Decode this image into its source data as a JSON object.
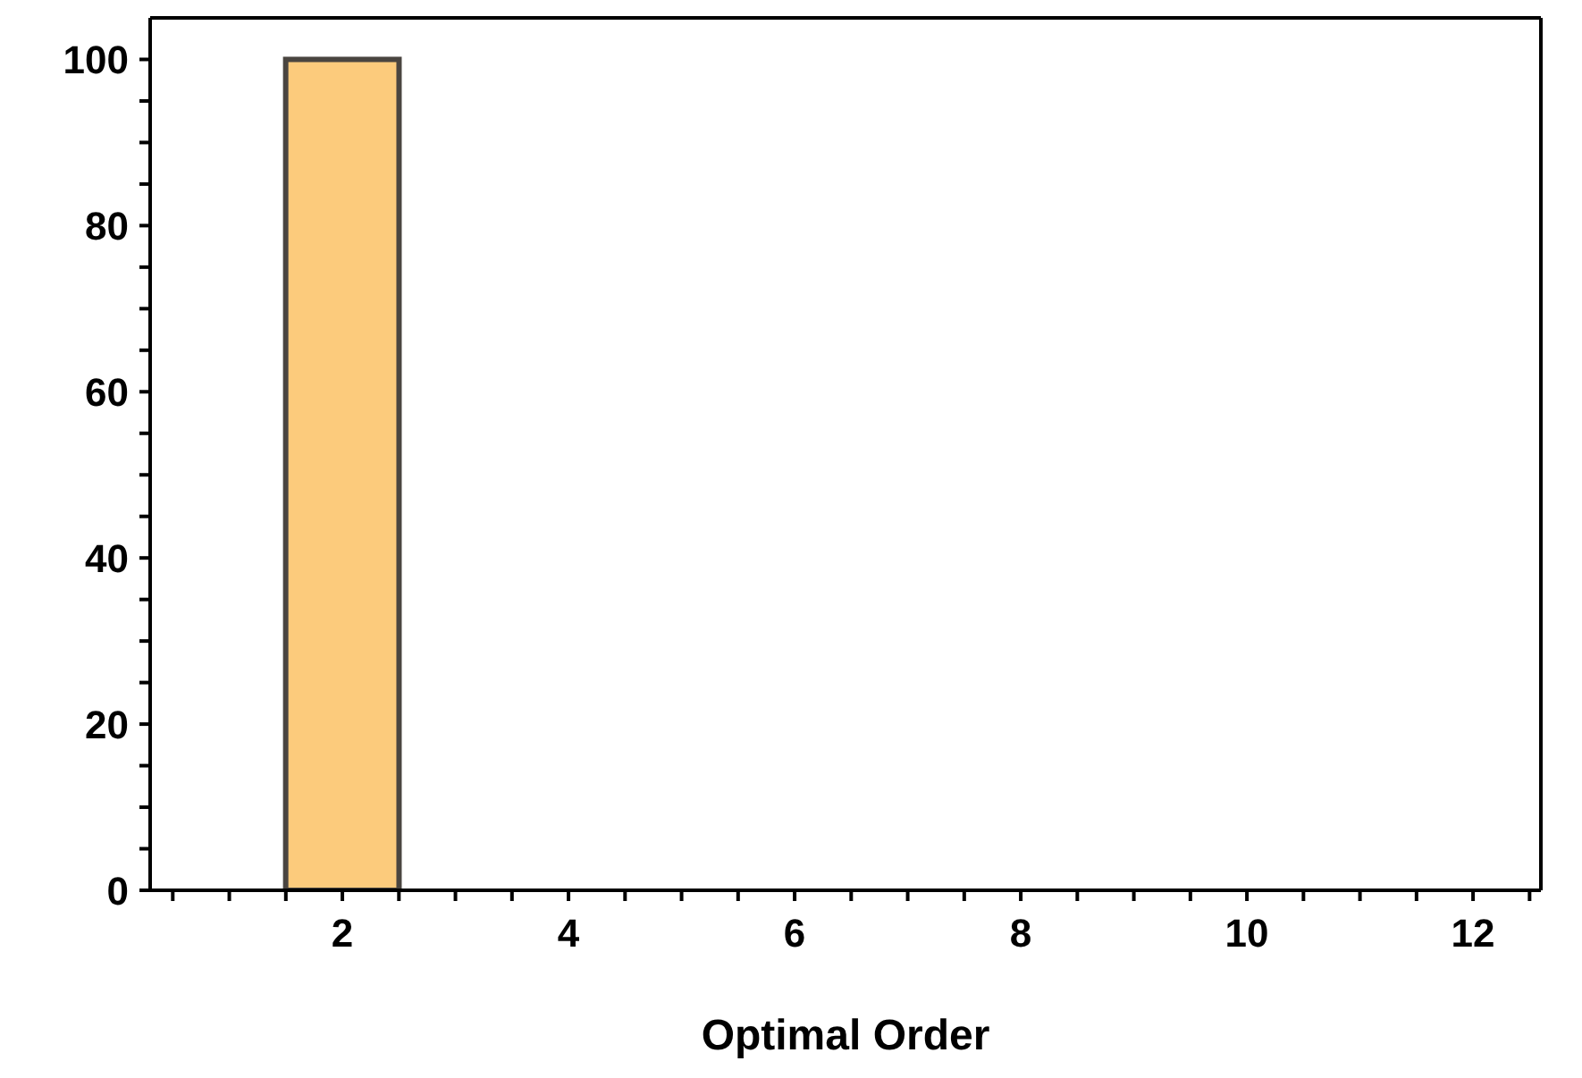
{
  "chart_data": {
    "type": "histogram",
    "xlabel": "Optimal Order",
    "bins": [
      1.5,
      2.5
    ],
    "values": [
      100
    ],
    "color": "#fccb7c",
    "xlim": [
      0.3,
      12.6
    ],
    "ylim": [
      0,
      105
    ],
    "xticks": [
      {
        "value": 0.5,
        "label": null
      },
      {
        "value": 1,
        "label": null
      },
      {
        "value": 1.5,
        "label": null
      },
      2,
      {
        "value": 2.5,
        "label": null
      },
      {
        "value": 3,
        "label": null
      },
      {
        "value": 3.5,
        "label": null
      },
      4,
      {
        "value": 4.5,
        "label": null
      },
      {
        "value": 5,
        "label": null
      },
      {
        "value": 5.5,
        "label": null
      },
      6,
      {
        "value": 6.5,
        "label": null
      },
      {
        "value": 7,
        "label": null
      },
      {
        "value": 7.5,
        "label": null
      },
      8,
      {
        "value": 8.5,
        "label": null
      },
      {
        "value": 9,
        "label": null
      },
      {
        "value": 9.5,
        "label": null
      },
      10,
      {
        "value": 10.5,
        "label": null
      },
      {
        "value": 11,
        "label": null
      },
      {
        "value": 11.5,
        "label": null
      },
      12,
      {
        "value": 12.5,
        "label": null
      }
    ],
    "yticks": [
      0,
      {
        "value": 5,
        "label": null
      },
      {
        "value": 10,
        "label": null
      },
      {
        "value": 15,
        "label": null
      },
      20,
      {
        "value": 25,
        "label": null
      },
      {
        "value": 30,
        "label": null
      },
      {
        "value": 35,
        "label": null
      },
      40,
      {
        "value": 45,
        "label": null
      },
      {
        "value": 50,
        "label": null
      },
      {
        "value": 55,
        "label": null
      },
      60,
      {
        "value": 65,
        "label": null
      },
      {
        "value": 70,
        "label": null
      },
      {
        "value": 75,
        "label": null
      },
      80,
      {
        "value": 85,
        "label": null
      },
      {
        "value": 90,
        "label": null
      },
      {
        "value": 95,
        "label": null
      },
      100
    ],
    "grid": false
  }
}
